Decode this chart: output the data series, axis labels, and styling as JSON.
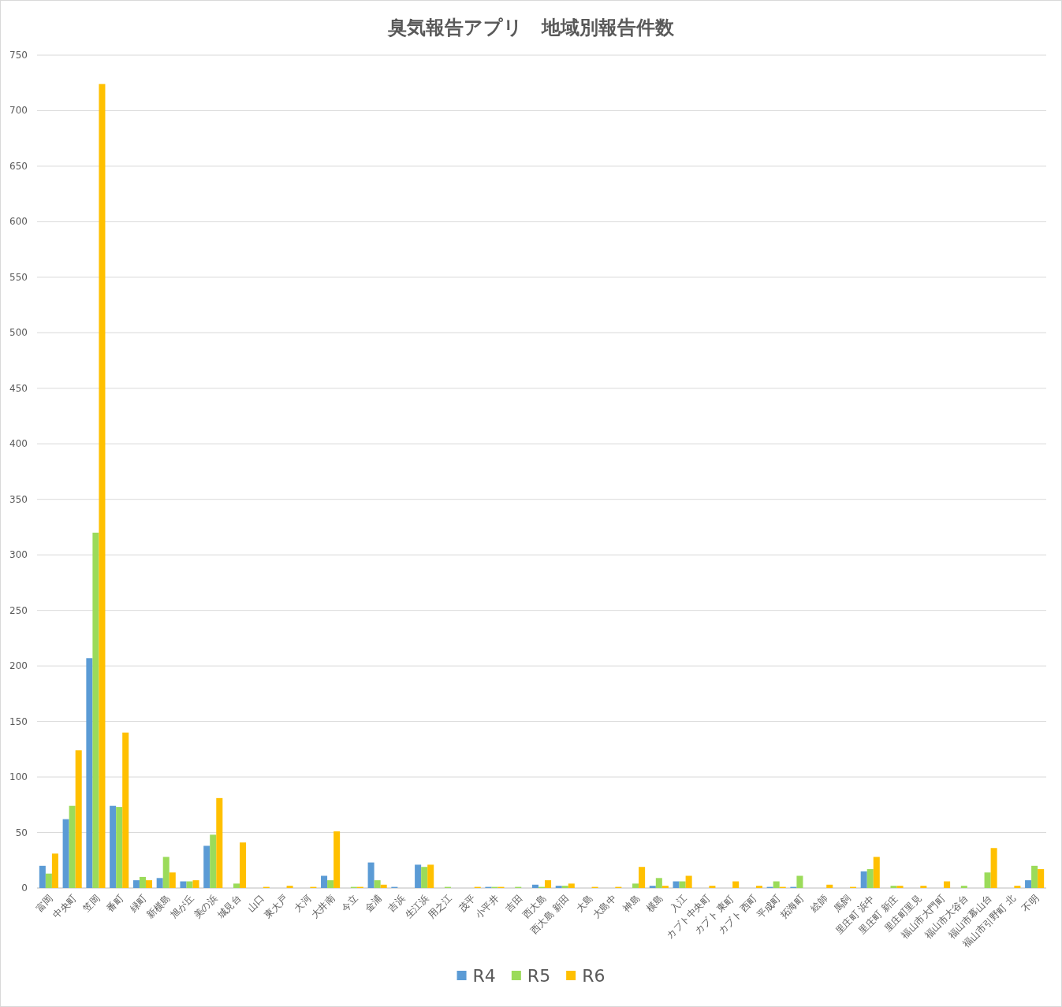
{
  "chart_data": {
    "type": "bar",
    "title": "臭気報告アプリ　地域別報告件数",
    "categories": [
      "富岡",
      "中央町",
      "笠岡",
      "番町",
      "緑町",
      "新横島",
      "旭が丘",
      "美の浜",
      "城見台",
      "山口",
      "東大戸",
      "大河",
      "大井南",
      "今立",
      "金浦",
      "吉浜",
      "生江浜",
      "用之江",
      "茂平",
      "小平井",
      "吉田",
      "西大島",
      "西大島 新田",
      "大島",
      "大島中",
      "神島",
      "横島",
      "入江",
      "カブト中央町",
      "カブト 東町",
      "カブト 西町",
      "平成町",
      "拓海町",
      "絵師",
      "馬飼",
      "里庄町 浜中",
      "里庄町 新庄",
      "里庄町里見",
      "福山市大門町",
      "福山市大谷台",
      "福山市幕山台",
      "福山市引野町 北",
      "不明"
    ],
    "series": [
      {
        "name": "R4",
        "color": "#5b9bd5",
        "values": [
          20,
          62,
          207,
          74,
          7,
          9,
          6,
          38,
          null,
          null,
          null,
          null,
          11,
          null,
          23,
          1,
          21,
          null,
          null,
          1,
          null,
          3,
          2,
          null,
          null,
          null,
          2,
          6,
          null,
          null,
          null,
          1,
          1,
          null,
          null,
          15,
          null,
          null,
          null,
          null,
          null,
          null,
          7
        ]
      },
      {
        "name": "R5",
        "color": "#9bdb5a",
        "values": [
          13,
          74,
          320,
          73,
          10,
          28,
          6,
          48,
          4,
          null,
          null,
          null,
          7,
          1,
          7,
          null,
          19,
          1,
          null,
          1,
          1,
          1,
          2,
          null,
          null,
          4,
          9,
          6,
          null,
          null,
          null,
          6,
          11,
          null,
          null,
          17,
          2,
          null,
          null,
          2,
          14,
          null,
          20
        ]
      },
      {
        "name": "R6",
        "color": "#ffc000",
        "values": [
          31,
          124,
          724,
          140,
          7,
          14,
          7,
          81,
          41,
          1,
          2,
          1,
          51,
          1,
          3,
          null,
          21,
          null,
          1,
          1,
          null,
          7,
          4,
          1,
          1,
          19,
          2,
          11,
          2,
          6,
          2,
          1,
          null,
          3,
          1,
          28,
          2,
          2,
          6,
          null,
          36,
          2,
          17
        ]
      }
    ],
    "ylim": [
      0,
      750
    ],
    "yticks": [
      0,
      50,
      100,
      150,
      200,
      250,
      300,
      350,
      400,
      450,
      500,
      550,
      600,
      650,
      700,
      750
    ],
    "grid": "y",
    "legend": "bottom"
  }
}
